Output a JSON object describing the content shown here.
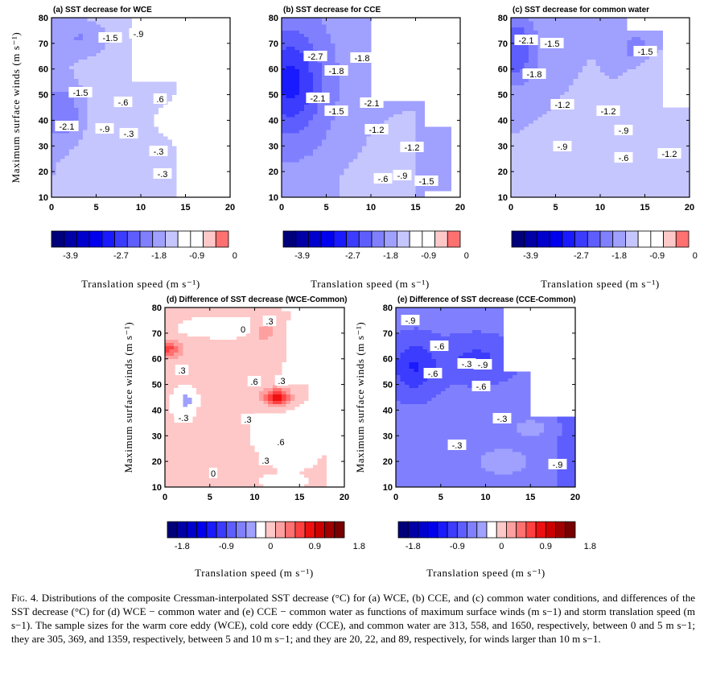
{
  "figure": {
    "caption_label": "Fig. 4.",
    "caption_text": "Distributions of the composite Cressman-interpolated SST decrease (°C) for (a) WCE, (b) CCE, and (c) common water conditions, and differences of the SST decrease (°C) for (d) WCE − common water and (e) CCE − common water as functions of maximum surface winds (m s−1) and storm translation speed (m s−1). The sample sizes for the warm core eddy (WCE), cold core eddy (CCE), and common water are 313, 558, and 1650, respectively, between 0 and 5 m s−1; they are 305, 369, and 1359, respectively, between 5 and 10 m s−1; and they are 20, 22, and 89, respectively, for winds larger than 10 m s−1."
  },
  "colors": {
    "blues": [
      "#00007a",
      "#0000a6",
      "#0000cc",
      "#0000ee",
      "#1a1aff",
      "#3c3cff",
      "#5e5eff",
      "#8080ff",
      "#a0a0ff",
      "#c6c6ff"
    ],
    "white": "#ffffff",
    "reds": [
      "#ffc8c8",
      "#ffa0a0",
      "#ff7070",
      "#ff4040",
      "#ee1010",
      "#cc0000",
      "#a00000",
      "#780000"
    ]
  },
  "chart_data": [
    {
      "id": "a",
      "type": "heatmap",
      "title": "(a) SST decrease for WCE",
      "xlabel": "Translation speed (m s⁻¹)",
      "ylabel": "Maximum surface winds (m s⁻¹)",
      "xlim": [
        0,
        20
      ],
      "ylim": [
        10,
        80
      ],
      "xticks": [
        0,
        5,
        10,
        15,
        20
      ],
      "yticks": [
        10,
        20,
        30,
        40,
        50,
        60,
        70,
        80
      ],
      "contour_labels": [
        "-1.5",
        "-.9",
        "-1.5",
        "-.6",
        ".6",
        "-2.1",
        "-.9",
        "-.3",
        "-.3",
        "-.3"
      ],
      "colorbar": {
        "labels": [
          "-3.9",
          "-2.7",
          "-1.8",
          "-0.9",
          "0"
        ],
        "label_values": [
          -3.9,
          -2.7,
          -1.8,
          -0.9,
          0
        ]
      }
    },
    {
      "id": "b",
      "type": "heatmap",
      "title": "(b) SST decrease for CCE",
      "xlabel": "Translation speed (m s⁻¹)",
      "ylabel": "",
      "xlim": [
        0,
        20
      ],
      "ylim": [
        10,
        80
      ],
      "xticks": [
        0,
        5,
        10,
        15,
        20
      ],
      "yticks": [
        10,
        20,
        30,
        40,
        50,
        60,
        70,
        80
      ],
      "contour_labels": [
        "-2.7",
        "-1.8",
        "-1.8",
        "-2.1",
        "-2.1",
        "-1.5",
        "-1.2",
        "-1.2",
        "-.6",
        "-.9",
        "-1.5"
      ],
      "colorbar": {
        "labels": [
          "-3.9",
          "-2.7",
          "-1.8",
          "-0.9",
          "0"
        ],
        "label_values": [
          -3.9,
          -2.7,
          -1.8,
          -0.9,
          0
        ]
      }
    },
    {
      "id": "c",
      "type": "heatmap",
      "title": "(c) SST decrease for common water",
      "xlabel": "Translation speed (m s⁻¹)",
      "ylabel": "",
      "xlim": [
        0,
        20
      ],
      "ylim": [
        10,
        80
      ],
      "xticks": [
        0,
        5,
        10,
        15,
        20
      ],
      "yticks": [
        10,
        20,
        30,
        40,
        50,
        60,
        70,
        80
      ],
      "contour_labels": [
        "-2.1",
        "-1.5",
        "-1.8",
        "-1.5",
        "-1.2",
        "-1.2",
        "-.9",
        "-.9",
        "-.6",
        "-1.2"
      ],
      "colorbar": {
        "labels": [
          "-3.9",
          "-2.7",
          "-1.8",
          "-0.9",
          "0"
        ],
        "label_values": [
          -3.9,
          -2.7,
          -1.8,
          -0.9,
          0
        ]
      }
    },
    {
      "id": "d",
      "type": "heatmap",
      "title": "(d) Difference of SST decrease (WCE-Common)",
      "xlabel": "Translation speed (m s⁻¹)",
      "ylabel": "Maximum surface winds (m s⁻¹)",
      "xlim": [
        0,
        20
      ],
      "ylim": [
        10,
        80
      ],
      "xticks": [
        0,
        5,
        10,
        15,
        20
      ],
      "yticks": [
        10,
        20,
        30,
        40,
        50,
        60,
        70,
        80
      ],
      "contour_labels": [
        ".3",
        "0",
        ".3",
        ".6",
        ".3",
        "-.3",
        ".3",
        ".6",
        ".3",
        "0"
      ],
      "colorbar": {
        "labels": [
          "-1.8",
          "-0.9",
          "0",
          "0.9",
          "1.8"
        ],
        "label_values": [
          -1.8,
          -0.9,
          0,
          0.9,
          1.8
        ]
      }
    },
    {
      "id": "e",
      "type": "heatmap",
      "title": "(e) Difference of SST decrease (CCE-Common)",
      "xlabel": "Translation speed (m s⁻¹)",
      "ylabel": "Maximum surface winds (m s⁻¹)",
      "xlim": [
        0,
        20
      ],
      "ylim": [
        10,
        80
      ],
      "xticks": [
        0,
        5,
        10,
        15,
        20
      ],
      "yticks": [
        10,
        20,
        30,
        40,
        50,
        60,
        70,
        80
      ],
      "contour_labels": [
        "-.9",
        "-.6",
        "-.9",
        "-.3",
        "-.6",
        "-.6",
        "-.3",
        "-.3",
        "-.9"
      ],
      "colorbar": {
        "labels": [
          "-1.8",
          "-0.9",
          "0",
          "0.9",
          "1.8"
        ],
        "label_values": [
          -1.8,
          -0.9,
          0,
          0.9,
          1.8
        ]
      }
    }
  ]
}
